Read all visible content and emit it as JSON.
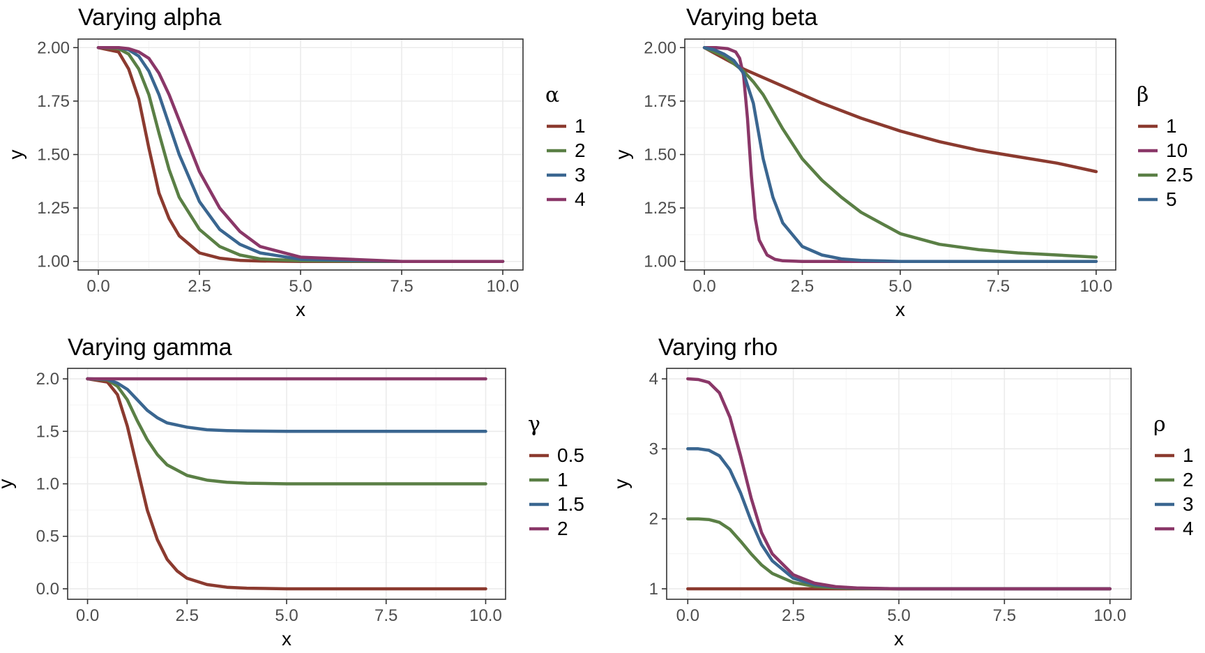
{
  "chart_data": [
    {
      "type": "line",
      "title": "Varying alpha",
      "xlabel": "x",
      "ylabel": "y",
      "xlim": [
        -0.5,
        10.5
      ],
      "ylim": [
        0.96,
        2.04
      ],
      "xticks": [
        0,
        2.5,
        5,
        7.5,
        10
      ],
      "xtick_labels": [
        "0.0",
        "2.5",
        "5.0",
        "7.5",
        "10.0"
      ],
      "yticks": [
        1,
        1.25,
        1.5,
        1.75,
        2
      ],
      "ytick_labels": [
        "1.00",
        "1.25",
        "1.50",
        "1.75",
        "2.00"
      ],
      "legend_title": "α",
      "legend_placement": "right",
      "series": [
        {
          "name": "1",
          "color": "#8b3a2f",
          "x": [
            0,
            0.5,
            0.75,
            1,
            1.25,
            1.5,
            1.75,
            2,
            2.5,
            3,
            3.5,
            4,
            5,
            7.5,
            10
          ],
          "y": [
            2,
            1.98,
            1.9,
            1.76,
            1.53,
            1.32,
            1.2,
            1.12,
            1.04,
            1.015,
            1.005,
            1.002,
            1,
            1,
            1
          ]
        },
        {
          "name": "2",
          "color": "#5a7f45",
          "x": [
            0,
            0.5,
            0.75,
            1,
            1.25,
            1.5,
            1.75,
            2,
            2.5,
            3,
            3.5,
            4,
            5,
            7.5,
            10
          ],
          "y": [
            2,
            1.995,
            1.97,
            1.9,
            1.78,
            1.6,
            1.43,
            1.3,
            1.15,
            1.07,
            1.03,
            1.012,
            1.003,
            1,
            1
          ]
        },
        {
          "name": "3",
          "color": "#3a6690",
          "x": [
            0,
            0.5,
            0.75,
            1,
            1.25,
            1.5,
            1.75,
            2,
            2.5,
            3,
            3.5,
            4,
            5,
            7.5,
            10
          ],
          "y": [
            2,
            2,
            1.99,
            1.96,
            1.89,
            1.78,
            1.64,
            1.5,
            1.28,
            1.15,
            1.08,
            1.04,
            1.01,
            1,
            1
          ]
        },
        {
          "name": "4",
          "color": "#8a3768",
          "x": [
            0,
            0.5,
            0.75,
            1,
            1.25,
            1.5,
            1.75,
            2,
            2.5,
            3,
            3.5,
            4,
            5,
            7.5,
            10
          ],
          "y": [
            2,
            2,
            1.995,
            1.98,
            1.95,
            1.88,
            1.78,
            1.66,
            1.42,
            1.25,
            1.14,
            1.07,
            1.02,
            1,
            1
          ]
        }
      ]
    },
    {
      "type": "line",
      "title": "Varying beta",
      "xlabel": "x",
      "ylabel": "y",
      "xlim": [
        -0.5,
        10.5
      ],
      "ylim": [
        0.96,
        2.04
      ],
      "xticks": [
        0,
        2.5,
        5,
        7.5,
        10
      ],
      "xtick_labels": [
        "0.0",
        "2.5",
        "5.0",
        "7.5",
        "10.0"
      ],
      "yticks": [
        1,
        1.25,
        1.5,
        1.75,
        2
      ],
      "ytick_labels": [
        "1.00",
        "1.25",
        "1.50",
        "1.75",
        "2.00"
      ],
      "legend_title": "β",
      "legend_placement": "right",
      "series": [
        {
          "name": "1",
          "color": "#8b3a2f",
          "x": [
            0,
            0.5,
            1,
            1.5,
            2,
            2.5,
            3,
            4,
            5,
            6,
            7,
            8,
            9,
            10
          ],
          "y": [
            2,
            1.95,
            1.9,
            1.86,
            1.82,
            1.78,
            1.74,
            1.67,
            1.61,
            1.56,
            1.52,
            1.49,
            1.46,
            1.42
          ]
        },
        {
          "name": "10",
          "color": "#8a3768",
          "x": [
            0,
            0.3,
            0.6,
            0.8,
            0.9,
            1,
            1.1,
            1.2,
            1.3,
            1.4,
            1.6,
            1.8,
            2,
            2.5,
            3,
            5,
            10
          ],
          "y": [
            2,
            2,
            1.995,
            1.98,
            1.95,
            1.87,
            1.67,
            1.4,
            1.2,
            1.1,
            1.03,
            1.01,
            1.003,
            1,
            1,
            1,
            1
          ]
        },
        {
          "name": "2.5",
          "color": "#5a7f45",
          "x": [
            0,
            0.5,
            1,
            1.25,
            1.5,
            2,
            2.5,
            3,
            3.5,
            4,
            5,
            6,
            7,
            8,
            9,
            10
          ],
          "y": [
            2,
            1.96,
            1.89,
            1.84,
            1.78,
            1.62,
            1.48,
            1.38,
            1.3,
            1.23,
            1.13,
            1.08,
            1.055,
            1.04,
            1.03,
            1.02
          ]
        },
        {
          "name": "5",
          "color": "#3a6690",
          "x": [
            0,
            0.25,
            0.5,
            0.75,
            1,
            1.25,
            1.5,
            1.75,
            2,
            2.5,
            3,
            3.5,
            4,
            5,
            10
          ],
          "y": [
            2,
            1.99,
            1.97,
            1.94,
            1.88,
            1.74,
            1.48,
            1.3,
            1.18,
            1.07,
            1.03,
            1.012,
            1.005,
            1,
            1
          ]
        }
      ]
    },
    {
      "type": "line",
      "title": "Varying gamma",
      "xlabel": "x",
      "ylabel": "y",
      "xlim": [
        -0.5,
        10.5
      ],
      "ylim": [
        -0.1,
        2.1
      ],
      "xticks": [
        0,
        2.5,
        5,
        7.5,
        10
      ],
      "xtick_labels": [
        "0.0",
        "2.5",
        "5.0",
        "7.5",
        "10.0"
      ],
      "yticks": [
        0,
        0.5,
        1,
        1.5,
        2
      ],
      "ytick_labels": [
        "0.0",
        "0.5",
        "1.0",
        "1.5",
        "2.0"
      ],
      "legend_title": "γ",
      "legend_placement": "right",
      "series": [
        {
          "name": "0.5",
          "color": "#8b3a2f",
          "x": [
            0,
            0.5,
            0.75,
            1,
            1.25,
            1.5,
            1.75,
            2,
            2.25,
            2.5,
            3,
            3.5,
            4,
            5,
            7.5,
            10
          ],
          "y": [
            2,
            1.97,
            1.85,
            1.55,
            1.15,
            0.75,
            0.47,
            0.28,
            0.17,
            0.1,
            0.04,
            0.015,
            0.006,
            0,
            0,
            0
          ]
        },
        {
          "name": "1",
          "color": "#5a7f45",
          "x": [
            0,
            0.5,
            0.75,
            1,
            1.25,
            1.5,
            1.75,
            2,
            2.5,
            3,
            3.5,
            4,
            5,
            7.5,
            10
          ],
          "y": [
            2,
            1.99,
            1.93,
            1.8,
            1.6,
            1.42,
            1.28,
            1.18,
            1.08,
            1.035,
            1.015,
            1.006,
            1,
            1,
            1
          ]
        },
        {
          "name": "1.5",
          "color": "#3a6690",
          "x": [
            0,
            0.5,
            0.75,
            1,
            1.25,
            1.5,
            1.75,
            2,
            2.5,
            3,
            3.5,
            4,
            5,
            7.5,
            10
          ],
          "y": [
            2,
            1.995,
            1.96,
            1.9,
            1.8,
            1.7,
            1.63,
            1.58,
            1.54,
            1.515,
            1.507,
            1.503,
            1.5,
            1.5,
            1.5
          ]
        },
        {
          "name": "2",
          "color": "#8a3768",
          "x": [
            0,
            10
          ],
          "y": [
            2,
            2
          ]
        }
      ]
    },
    {
      "type": "line",
      "title": "Varying rho",
      "xlabel": "x",
      "ylabel": "y",
      "xlim": [
        -0.5,
        10.5
      ],
      "ylim": [
        0.85,
        4.15
      ],
      "xticks": [
        0,
        2.5,
        5,
        7.5,
        10
      ],
      "xtick_labels": [
        "0.0",
        "2.5",
        "5.0",
        "7.5",
        "10.0"
      ],
      "yticks": [
        1,
        2,
        3,
        4
      ],
      "ytick_labels": [
        "1",
        "2",
        "3",
        "4"
      ],
      "legend_title": "ρ",
      "legend_placement": "right",
      "series": [
        {
          "name": "1",
          "color": "#8b3a2f",
          "x": [
            0,
            10
          ],
          "y": [
            1,
            1
          ]
        },
        {
          "name": "2",
          "color": "#5a7f45",
          "x": [
            0,
            0.25,
            0.5,
            0.75,
            1,
            1.25,
            1.5,
            1.75,
            2,
            2.5,
            3,
            3.5,
            4,
            5,
            10
          ],
          "y": [
            2,
            2,
            1.99,
            1.95,
            1.85,
            1.68,
            1.5,
            1.34,
            1.22,
            1.09,
            1.035,
            1.015,
            1.005,
            1,
            1
          ]
        },
        {
          "name": "3",
          "color": "#3a6690",
          "x": [
            0,
            0.25,
            0.5,
            0.75,
            1,
            1.25,
            1.5,
            1.75,
            2,
            2.5,
            3,
            3.5,
            4,
            5,
            10
          ],
          "y": [
            3,
            3,
            2.98,
            2.9,
            2.7,
            2.37,
            1.97,
            1.63,
            1.4,
            1.15,
            1.06,
            1.025,
            1.01,
            1,
            1
          ]
        },
        {
          "name": "4",
          "color": "#8a3768",
          "x": [
            0,
            0.25,
            0.5,
            0.75,
            1,
            1.25,
            1.5,
            1.75,
            2,
            2.5,
            3,
            3.5,
            4,
            5,
            10
          ],
          "y": [
            4,
            3.99,
            3.95,
            3.8,
            3.45,
            2.9,
            2.3,
            1.8,
            1.5,
            1.2,
            1.08,
            1.03,
            1.012,
            1,
            1
          ]
        }
      ]
    }
  ]
}
